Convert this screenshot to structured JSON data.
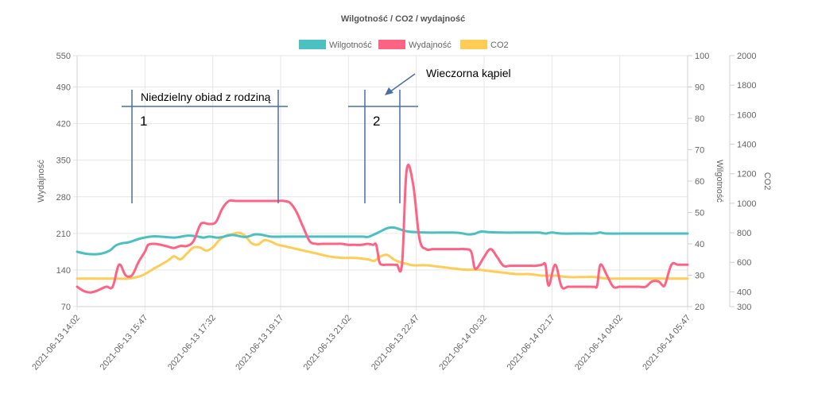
{
  "chart_data": {
    "type": "line",
    "title": "Wilgotność / CO2 / wydajność",
    "legend_position": "top",
    "grid": true,
    "x_labels": [
      "2021-06-13 14:02",
      "2021-06-13 15:47",
      "2021-06-13 17:32",
      "2021-06-13 19:17",
      "2021-06-13 21:02",
      "2021-06-13 22:47",
      "2021-06-14 00:32",
      "2021-06-14 02:17",
      "2021-06-14 04:02",
      "2021-06-14 05:47"
    ],
    "x_range": [
      0,
      945
    ],
    "axes": {
      "left": {
        "label": "Wydajność",
        "range": [
          70,
          550
        ],
        "ticks": [
          70,
          140,
          210,
          280,
          350,
          420,
          490,
          550
        ]
      },
      "right1": {
        "label": "Wilgotność",
        "range": [
          20,
          100
        ],
        "ticks": [
          20,
          30,
          40,
          50,
          60,
          70,
          80,
          90,
          100
        ]
      },
      "right2": {
        "label": "CO2",
        "range": [
          300,
          2000
        ],
        "ticks": [
          300,
          400,
          600,
          800,
          1000,
          1200,
          1400,
          1600,
          1800,
          2000
        ]
      }
    },
    "series": [
      {
        "name": "Wilgotność",
        "axis": "right1",
        "color": "#4bc0c0",
        "x": [
          0,
          15,
          35,
          50,
          60,
          70,
          80,
          100,
          120,
          150,
          170,
          185,
          195,
          205,
          220,
          240,
          260,
          275,
          285,
          300,
          320,
          350,
          400,
          440,
          450,
          460,
          470,
          480,
          490,
          500,
          510,
          520,
          540,
          560,
          580,
          595,
          605,
          615,
          625,
          640,
          660,
          680,
          700,
          715,
          725,
          735,
          750,
          780,
          800,
          810,
          820,
          860,
          900,
          945
        ],
        "values": [
          37.5,
          36.8,
          36.8,
          37.8,
          39.5,
          40.2,
          40.5,
          41.8,
          42.4,
          42.0,
          42.6,
          42.4,
          42.0,
          42.3,
          42.0,
          42.8,
          42.2,
          43.0,
          42.9,
          42.3,
          42.3,
          42.3,
          42.3,
          42.3,
          42.2,
          43.0,
          44.0,
          45.0,
          45.2,
          44.6,
          44.0,
          43.8,
          43.6,
          43.6,
          43.6,
          43.4,
          43.0,
          43.2,
          43.9,
          43.7,
          43.6,
          43.6,
          43.6,
          43.6,
          43.3,
          43.6,
          43.3,
          43.3,
          43.3,
          43.6,
          43.3,
          43.3,
          43.3,
          43.3
        ]
      },
      {
        "name": "Wydajność",
        "axis": "left",
        "color": "#ff6384",
        "x": [
          0,
          10,
          20,
          30,
          45,
          55,
          65,
          75,
          85,
          95,
          105,
          110,
          120,
          130,
          140,
          150,
          160,
          170,
          180,
          190,
          195,
          205,
          215,
          225,
          235,
          245,
          255,
          265,
          270,
          280,
          290,
          300,
          310,
          320,
          330,
          340,
          350,
          360,
          370,
          380,
          390,
          395,
          400,
          410,
          420,
          425,
          430,
          440,
          450,
          458,
          463,
          468,
          473,
          478,
          483,
          490,
          495,
          503,
          510,
          520,
          530,
          540,
          550,
          560,
          570,
          580,
          590,
          600,
          610,
          615,
          620,
          630,
          640,
          650,
          660,
          670,
          680,
          690,
          700,
          710,
          720,
          725,
          730,
          740,
          750,
          760,
          770,
          780,
          790,
          800,
          805,
          810,
          820,
          830,
          840,
          850,
          860,
          870,
          880,
          890,
          900,
          905,
          910,
          920,
          930,
          940,
          945
        ],
        "values": [
          108,
          100,
          97,
          100,
          108,
          108,
          150,
          130,
          130,
          155,
          175,
          188,
          190,
          188,
          185,
          182,
          186,
          186,
          195,
          225,
          230,
          228,
          232,
          258,
          272,
          272,
          272,
          272,
          272,
          272,
          272,
          272,
          272,
          272,
          268,
          250,
          222,
          195,
          190,
          190,
          190,
          190,
          190,
          190,
          188,
          188,
          188,
          188,
          190,
          188,
          188,
          155,
          150,
          150,
          150,
          150,
          150,
          152,
          330,
          305,
          200,
          180,
          180,
          180,
          180,
          180,
          180,
          180,
          175,
          145,
          145,
          165,
          180,
          165,
          148,
          148,
          148,
          148,
          148,
          148,
          150,
          150,
          110,
          150,
          108,
          108,
          108,
          108,
          108,
          108,
          110,
          150,
          130,
          108,
          108,
          108,
          108,
          108,
          108,
          118,
          118,
          112,
          112,
          150,
          150,
          150,
          150
        ]
      },
      {
        "name": "CO2",
        "axis": "right2",
        "color": "#ffcd56",
        "x": [
          0,
          20,
          40,
          60,
          80,
          100,
          120,
          140,
          150,
          160,
          170,
          180,
          190,
          200,
          210,
          220,
          230,
          240,
          250,
          260,
          270,
          280,
          290,
          300,
          310,
          320,
          330,
          340,
          350,
          370,
          390,
          410,
          430,
          450,
          460,
          470,
          480,
          490,
          500,
          510,
          520,
          540,
          560,
          580,
          600,
          620,
          640,
          660,
          680,
          700,
          720,
          740,
          760,
          780,
          800,
          820,
          840,
          860,
          880,
          900,
          920,
          945
        ],
        "values": [
          490,
          490,
          490,
          490,
          490,
          510,
          560,
          610,
          640,
          620,
          660,
          700,
          700,
          680,
          700,
          750,
          780,
          790,
          800,
          780,
          730,
          720,
          750,
          740,
          720,
          710,
          700,
          690,
          680,
          660,
          640,
          630,
          630,
          620,
          610,
          640,
          650,
          620,
          600,
          590,
          580,
          580,
          570,
          560,
          550,
          550,
          540,
          530,
          520,
          520,
          510,
          510,
          500,
          500,
          500,
          490,
          490,
          490,
          490,
          490,
          490,
          490
        ]
      }
    ],
    "annotations": {
      "label1": "Niedzielny obiad z rodziną",
      "num1": "1",
      "label2": "Wieczorna kąpiel",
      "num2": "2"
    }
  }
}
